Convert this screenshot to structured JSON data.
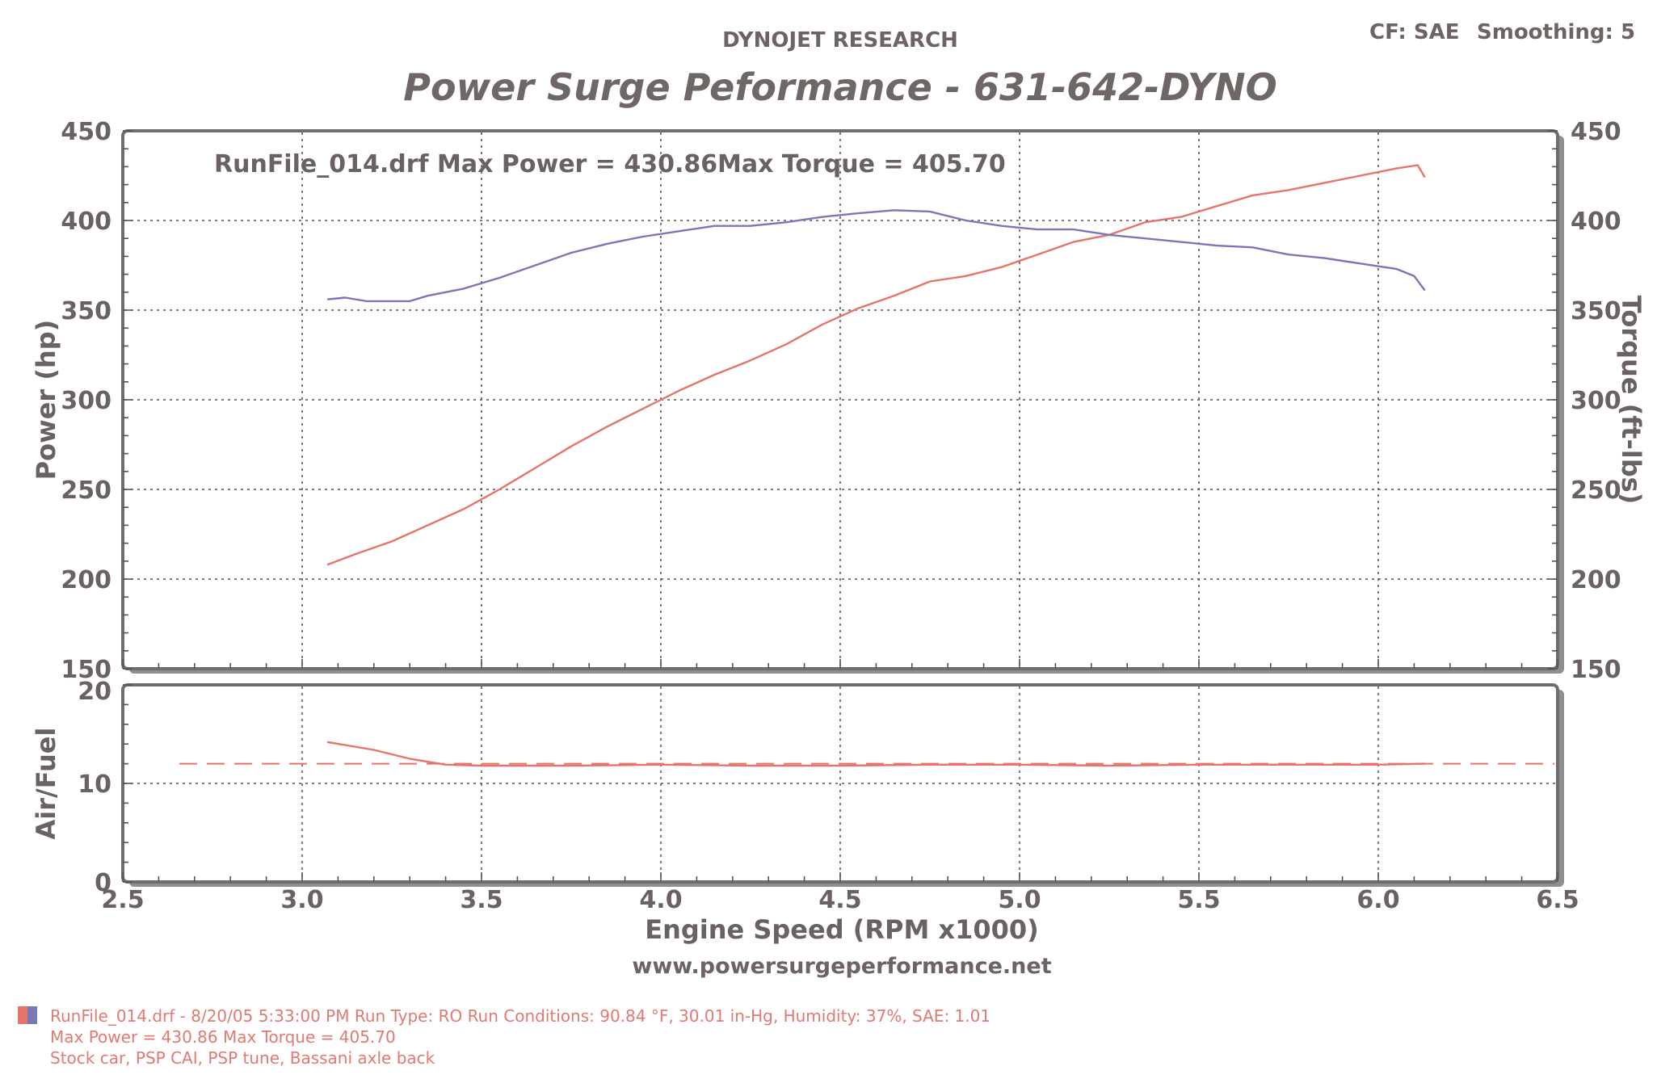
{
  "header": {
    "company": "DYNOJET RESEARCH",
    "title": "Power Surge Peformance - 631-642-DYNO",
    "cf_label": "CF: SAE",
    "smoothing_label": "Smoothing: 5"
  },
  "annotation": {
    "max_power_text": "RunFile_014.drf Max Power = 430.86",
    "max_torque_text": "Max Torque = 405.70"
  },
  "website": "www.powersurgeperformance.net",
  "footer": {
    "line1": "RunFile_014.drf - 8/20/05 5:33:00 PM  Run Type: RO  Run Conditions: 90.84 °F, 30.01 in-Hg,  Humidity:  37%, SAE: 1.01",
    "line2": "Max Power = 430.86  Max Torque = 405.70",
    "line3": "Stock car, PSP CAI, PSP tune, Bassani axle back"
  },
  "colors": {
    "power": "#e8736a",
    "torque": "#7878b8",
    "grid": "#555555",
    "frame": "#6e6e6e",
    "text": "#6a6262"
  },
  "chart_data": [
    {
      "type": "line",
      "xlabel": "Engine Speed (RPM x1000)",
      "ylabel": "Power (hp)",
      "y2label": "Torque (ft-lbs)",
      "xlim": [
        2.5,
        6.5
      ],
      "ylim": [
        150,
        450
      ],
      "y2lim": [
        150,
        450
      ],
      "x_ticks": [
        "2.5",
        "3.0",
        "3.5",
        "4.0",
        "4.5",
        "5.0",
        "5.5",
        "6.0",
        "6.5"
      ],
      "y_ticks": [
        "150",
        "200",
        "250",
        "300",
        "350",
        "400",
        "450"
      ],
      "y2_ticks": [
        "150",
        "200",
        "250",
        "300",
        "350",
        "400",
        "450"
      ],
      "grid": true,
      "series": [
        {
          "name": "Power",
          "axis": "left",
          "points": [
            [
              3.07,
              208
            ],
            [
              3.15,
              214
            ],
            [
              3.25,
              221
            ],
            [
              3.35,
              230
            ],
            [
              3.45,
              239
            ],
            [
              3.55,
              250
            ],
            [
              3.65,
              262
            ],
            [
              3.75,
              274
            ],
            [
              3.85,
              285
            ],
            [
              3.95,
              295
            ],
            [
              4.05,
              305
            ],
            [
              4.15,
              314
            ],
            [
              4.25,
              322
            ],
            [
              4.35,
              331
            ],
            [
              4.45,
              342
            ],
            [
              4.55,
              351
            ],
            [
              4.65,
              358
            ],
            [
              4.75,
              366
            ],
            [
              4.85,
              369
            ],
            [
              4.95,
              374
            ],
            [
              5.05,
              381
            ],
            [
              5.15,
              388
            ],
            [
              5.25,
              392
            ],
            [
              5.35,
              399
            ],
            [
              5.45,
              402
            ],
            [
              5.55,
              408
            ],
            [
              5.65,
              414
            ],
            [
              5.75,
              417
            ],
            [
              5.85,
              421
            ],
            [
              5.95,
              425
            ],
            [
              6.05,
              429
            ],
            [
              6.11,
              430.86
            ],
            [
              6.13,
              424
            ]
          ]
        },
        {
          "name": "Torque",
          "axis": "right",
          "points": [
            [
              3.07,
              356
            ],
            [
              3.12,
              357
            ],
            [
              3.18,
              355
            ],
            [
              3.25,
              355
            ],
            [
              3.3,
              355
            ],
            [
              3.35,
              358
            ],
            [
              3.45,
              362
            ],
            [
              3.55,
              368
            ],
            [
              3.65,
              375
            ],
            [
              3.75,
              382
            ],
            [
              3.85,
              387
            ],
            [
              3.95,
              391
            ],
            [
              4.05,
              394
            ],
            [
              4.15,
              397
            ],
            [
              4.25,
              397
            ],
            [
              4.35,
              399
            ],
            [
              4.45,
              402
            ],
            [
              4.55,
              404
            ],
            [
              4.65,
              405.7
            ],
            [
              4.75,
              405
            ],
            [
              4.85,
              400
            ],
            [
              4.95,
              397
            ],
            [
              5.05,
              395
            ],
            [
              5.15,
              395
            ],
            [
              5.25,
              392
            ],
            [
              5.35,
              390
            ],
            [
              5.45,
              388
            ],
            [
              5.55,
              386
            ],
            [
              5.65,
              385
            ],
            [
              5.75,
              381
            ],
            [
              5.85,
              379
            ],
            [
              5.95,
              376
            ],
            [
              6.05,
              373
            ],
            [
              6.1,
              369
            ],
            [
              6.13,
              361
            ]
          ]
        }
      ]
    },
    {
      "type": "line",
      "xlabel": "Engine Speed (RPM x1000)",
      "ylabel": "Air/Fuel",
      "xlim": [
        2.5,
        6.5
      ],
      "ylim": [
        0,
        20
      ],
      "x_ticks": [
        "2.5",
        "3.0",
        "3.5",
        "4.0",
        "4.5",
        "5.0",
        "5.5",
        "6.0",
        "6.5"
      ],
      "y_ticks": [
        "0",
        "10",
        "20"
      ],
      "grid": true,
      "reference_line": 12.0,
      "series": [
        {
          "name": "Air/Fuel",
          "points": [
            [
              3.07,
              14.2
            ],
            [
              3.2,
              13.4
            ],
            [
              3.3,
              12.5
            ],
            [
              3.4,
              11.9
            ],
            [
              3.5,
              11.8
            ],
            [
              3.75,
              11.8
            ],
            [
              4.0,
              11.9
            ],
            [
              4.25,
              11.8
            ],
            [
              4.5,
              11.8
            ],
            [
              4.75,
              11.9
            ],
            [
              5.0,
              11.9
            ],
            [
              5.25,
              11.8
            ],
            [
              5.5,
              11.9
            ],
            [
              5.75,
              11.9
            ],
            [
              6.0,
              11.9
            ],
            [
              6.13,
              12.0
            ]
          ]
        }
      ]
    }
  ]
}
